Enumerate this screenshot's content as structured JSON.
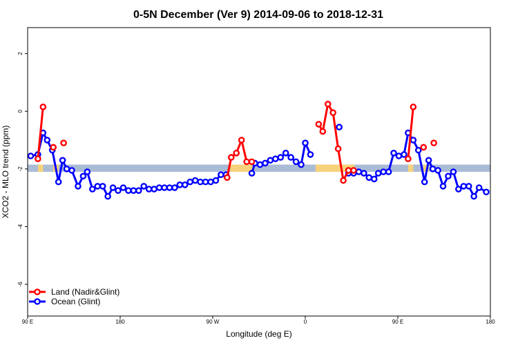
{
  "chart_data": {
    "type": "line",
    "title": "0-5N December (Ver 9)   2014-09-06 to 2018-12-31",
    "xlabel": "Longitude (deg E)",
    "ylabel": "XCO2 - MLO trend (ppm)",
    "xlim": [
      0,
      450
    ],
    "ylim": [
      -7.1,
      2.9
    ],
    "x_ticks": [
      {
        "x": 0,
        "label": "90 E"
      },
      {
        "x": 90,
        "label": "180"
      },
      {
        "x": 180,
        "label": "90 W"
      },
      {
        "x": 270,
        "label": "0"
      },
      {
        "x": 360,
        "label": "90 E"
      },
      {
        "x": 450,
        "label": "180"
      }
    ],
    "y_ticks": [
      {
        "y": 2,
        "label": "2"
      },
      {
        "y": 0,
        "label": "0"
      },
      {
        "y": -2,
        "label": "-2"
      },
      {
        "y": -4,
        "label": "-4"
      },
      {
        "y": -6,
        "label": "-6"
      }
    ],
    "background_band": {
      "y_range": [
        -2.1,
        -1.85
      ],
      "color": "#aabbd6",
      "highlight_color": "#f7d27a",
      "highlight_ranges": [
        [
          10,
          15
        ],
        [
          25,
          30
        ],
        [
          197,
          220
        ],
        [
          280,
          318
        ],
        [
          370,
          375
        ],
        [
          385,
          390
        ]
      ]
    },
    "legend": {
      "position": "bottom-left",
      "entries": [
        {
          "label": "Land (Nadir&Glint)",
          "color": "#ff0000"
        },
        {
          "label": "Ocean (Glint)",
          "color": "#0000ff"
        }
      ]
    },
    "series": [
      {
        "name": "Land (Nadir&Glint)",
        "color": "#ff0000",
        "segments": [
          [
            [
              10,
              -1.65
            ],
            [
              15,
              0.15
            ]
          ],
          [
            [
              25,
              -1.25
            ]
          ],
          [
            [
              35,
              -1.1
            ]
          ],
          [
            [
              194,
              -2.3
            ],
            [
              198,
              -1.6
            ],
            [
              203,
              -1.45
            ],
            [
              208,
              -1.0
            ],
            [
              213,
              -1.75
            ],
            [
              218,
              -1.75
            ]
          ],
          [
            [
              283,
              -0.45
            ],
            [
              287,
              -0.7
            ],
            [
              292,
              0.25
            ],
            [
              297,
              -0.05
            ],
            [
              302,
              -1.3
            ],
            [
              307,
              -2.4
            ],
            [
              312,
              -2.05
            ],
            [
              317,
              -2.05
            ]
          ],
          [
            [
              370,
              -1.65
            ],
            [
              375,
              0.15
            ]
          ],
          [
            [
              385,
              -1.25
            ]
          ],
          [
            [
              395,
              -1.1
            ]
          ]
        ]
      },
      {
        "name": "Ocean (Glint)",
        "color": "#0000ff",
        "segments": [
          [
            [
              3,
              -1.55
            ],
            [
              10,
              -1.5
            ],
            [
              15,
              -0.75
            ],
            [
              19,
              -1.0
            ],
            [
              24,
              -1.35
            ],
            [
              30,
              -2.45
            ],
            [
              34,
              -1.7
            ],
            [
              38,
              -2.0
            ],
            [
              43,
              -2.05
            ],
            [
              49,
              -2.6
            ],
            [
              54,
              -2.25
            ],
            [
              58,
              -2.1
            ],
            [
              63,
              -2.7
            ],
            [
              68,
              -2.6
            ],
            [
              73,
              -2.6
            ],
            [
              78,
              -2.95
            ],
            [
              83,
              -2.65
            ],
            [
              88,
              -2.75
            ],
            [
              93,
              -2.65
            ],
            [
              98,
              -2.75
            ],
            [
              103,
              -2.75
            ],
            [
              108,
              -2.75
            ],
            [
              113,
              -2.6
            ],
            [
              118,
              -2.7
            ],
            [
              123,
              -2.7
            ],
            [
              128,
              -2.65
            ],
            [
              133,
              -2.65
            ],
            [
              138,
              -2.65
            ],
            [
              143,
              -2.65
            ],
            [
              148,
              -2.55
            ],
            [
              153,
              -2.55
            ],
            [
              158,
              -2.45
            ],
            [
              163,
              -2.4
            ],
            [
              168,
              -2.45
            ],
            [
              173,
              -2.45
            ],
            [
              178,
              -2.45
            ],
            [
              183,
              -2.4
            ],
            [
              188,
              -2.2
            ],
            [
              193,
              -2.2
            ]
          ],
          [
            [
              218,
              -2.15
            ],
            [
              221,
              -1.8
            ],
            [
              226,
              -1.85
            ],
            [
              231,
              -1.8
            ],
            [
              236,
              -1.7
            ],
            [
              241,
              -1.65
            ],
            [
              246,
              -1.6
            ],
            [
              251,
              -1.45
            ],
            [
              256,
              -1.6
            ],
            [
              261,
              -1.75
            ],
            [
              266,
              -1.85
            ],
            [
              270,
              -1.1
            ],
            [
              275,
              -1.5
            ]
          ],
          [
            [
              303,
              -0.55
            ]
          ],
          [
            [
              312,
              -2.15
            ],
            [
              317,
              -2.15
            ],
            [
              322,
              -2.1
            ],
            [
              327,
              -2.15
            ],
            [
              332,
              -2.3
            ],
            [
              337,
              -2.35
            ],
            [
              341,
              -2.15
            ],
            [
              346,
              -2.1
            ],
            [
              351,
              -2.1
            ],
            [
              356,
              -1.45
            ],
            [
              361,
              -1.55
            ],
            [
              366,
              -1.5
            ],
            [
              370,
              -0.75
            ],
            [
              375,
              -1.0
            ],
            [
              380,
              -1.35
            ],
            [
              386,
              -2.45
            ],
            [
              390,
              -1.7
            ],
            [
              394,
              -2.0
            ],
            [
              399,
              -2.05
            ],
            [
              404,
              -2.6
            ],
            [
              409,
              -2.25
            ],
            [
              414,
              -2.1
            ],
            [
              419,
              -2.7
            ],
            [
              424,
              -2.6
            ],
            [
              429,
              -2.6
            ],
            [
              434,
              -2.95
            ],
            [
              439,
              -2.65
            ],
            [
              446,
              -2.8
            ]
          ]
        ]
      }
    ]
  }
}
